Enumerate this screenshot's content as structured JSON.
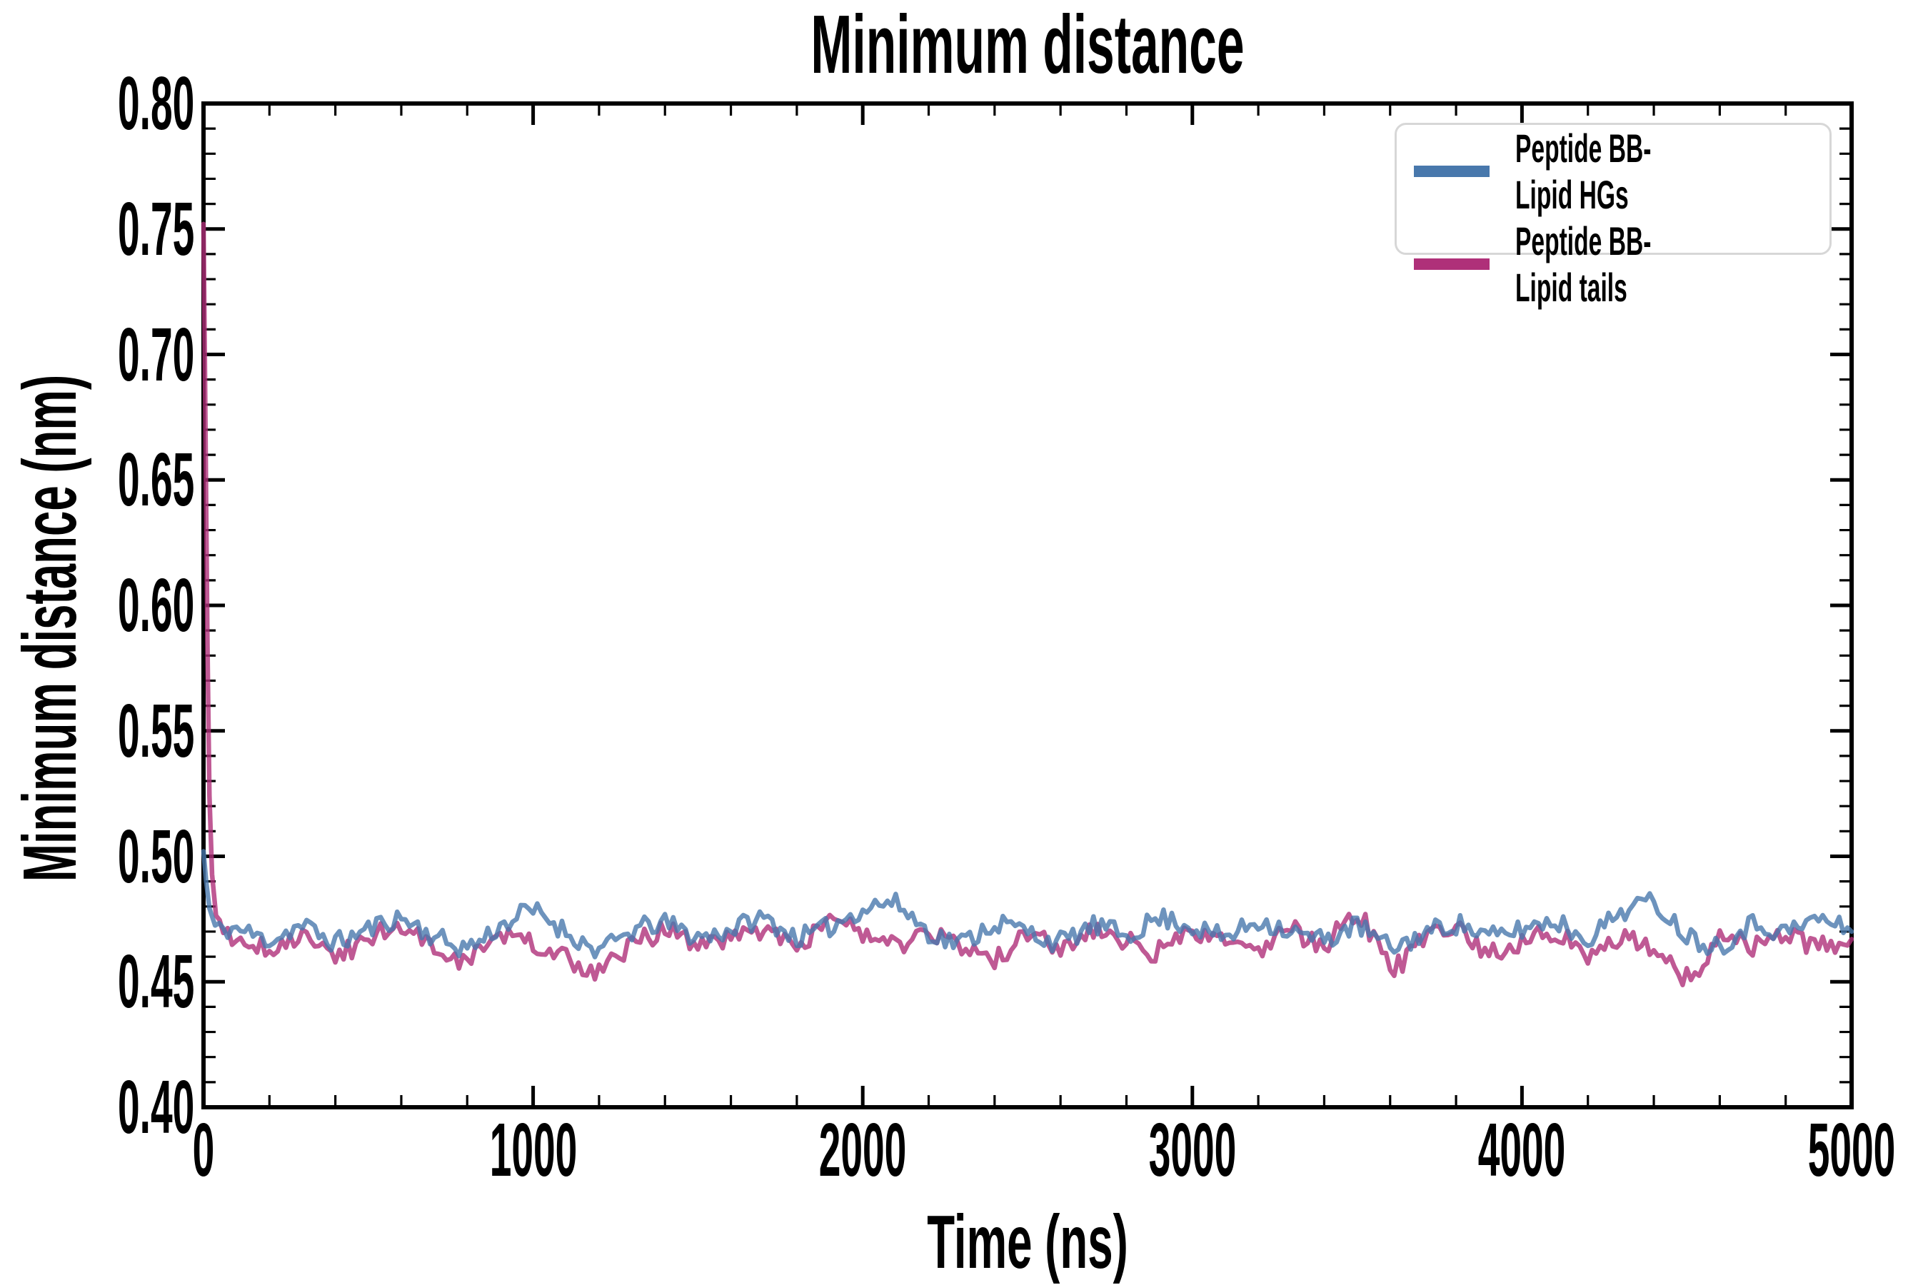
{
  "chart_data": {
    "type": "line",
    "title": "Minimum distance",
    "xlabel": "Time (ns)",
    "ylabel": "Minimum distance (nm)",
    "xlim": [
      0,
      5000
    ],
    "ylim": [
      0.4,
      0.8
    ],
    "x_major_ticks": [
      0,
      1000,
      2000,
      3000,
      4000,
      5000
    ],
    "x_tick_labels": [
      "0",
      "1000",
      "2000",
      "3000",
      "4000",
      "5000"
    ],
    "x_minor_step": 200,
    "y_major_ticks": [
      0.4,
      0.45,
      0.5,
      0.55,
      0.6,
      0.65,
      0.7,
      0.75,
      0.8
    ],
    "y_tick_labels": [
      "0.40",
      "0.45",
      "0.50",
      "0.55",
      "0.60",
      "0.65",
      "0.70",
      "0.75",
      "0.80"
    ],
    "y_minor_step": 0.01,
    "grid": false,
    "background": "#ffffff",
    "axis_color": "#000000",
    "legend_position": "upper right",
    "series": [
      {
        "name": "Peptide BB-Lipid HGs",
        "color": "#4878AC",
        "opacity": 0.8,
        "spike": [
          [
            0,
            0.502
          ],
          [
            8,
            0.49
          ],
          [
            18,
            0.479
          ],
          [
            35,
            0.472
          ],
          [
            60,
            0.471
          ]
        ],
        "x_start": 100,
        "x_step": 100,
        "values": [
          0.471,
          0.467,
          0.472,
          0.466,
          0.471,
          0.475,
          0.468,
          0.464,
          0.472,
          0.478,
          0.47,
          0.463,
          0.47,
          0.473,
          0.468,
          0.471,
          0.475,
          0.468,
          0.472,
          0.479,
          0.481,
          0.47,
          0.466,
          0.473,
          0.47,
          0.466,
          0.472,
          0.469,
          0.475,
          0.472,
          0.468,
          0.474,
          0.47,
          0.467,
          0.472,
          0.464,
          0.469,
          0.473,
          0.468,
          0.471,
          0.474,
          0.468,
          0.478,
          0.481,
          0.469,
          0.465,
          0.473,
          0.47,
          0.475,
          0.47
        ]
      },
      {
        "name": "Peptide BB-Lipid tails",
        "color": "#AF3079",
        "opacity": 0.8,
        "spike": [
          [
            0,
            0.752
          ],
          [
            4,
            0.7
          ],
          [
            8,
            0.64
          ],
          [
            12,
            0.585
          ],
          [
            18,
            0.525
          ],
          [
            26,
            0.492
          ],
          [
            38,
            0.477
          ],
          [
            60,
            0.468
          ]
        ],
        "x_start": 100,
        "x_step": 100,
        "values": [
          0.468,
          0.463,
          0.468,
          0.461,
          0.467,
          0.471,
          0.465,
          0.459,
          0.468,
          0.465,
          0.459,
          0.455,
          0.464,
          0.47,
          0.464,
          0.468,
          0.471,
          0.464,
          0.476,
          0.468,
          0.464,
          0.47,
          0.463,
          0.459,
          0.468,
          0.464,
          0.47,
          0.466,
          0.462,
          0.469,
          0.465,
          0.462,
          0.47,
          0.465,
          0.477,
          0.456,
          0.466,
          0.47,
          0.462,
          0.466,
          0.469,
          0.461,
          0.468,
          0.464,
          0.452,
          0.467,
          0.464,
          0.469,
          0.464,
          0.467
        ]
      }
    ],
    "render": {
      "line_width": 6.5,
      "noise_amp": 0.0042,
      "noise_seed": 11,
      "substep_ns": 12.5,
      "draw_order": [
        1,
        0
      ]
    }
  }
}
